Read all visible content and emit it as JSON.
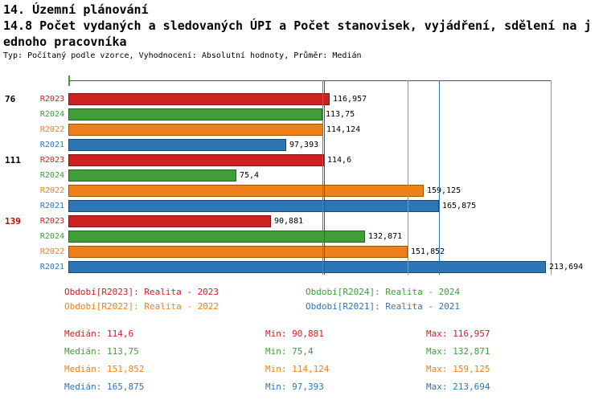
{
  "header": {
    "title": "14. Územní plánování",
    "subtitle_line1": "14.8 Počet vydaných a sledovaných ÚPI a Počet stanovisek, vyjádření, sdělení na j",
    "subtitle_line2": "ednoho pracovníka",
    "meta": "Typ: Počítaný podle vzorce, Vyhodnocení: Absolutní hodnoty, Průměr: Medián"
  },
  "chart_data": {
    "type": "bar",
    "orientation": "horizontal",
    "title": "14.8 Počet vydaných a sledovaných ÚPI a Počet stanovisek, vyjádření, sdělení na jednoho pracovníka",
    "xlim": [
      0,
      216
    ],
    "grid": false,
    "categories": [
      "76",
      "111",
      "139"
    ],
    "series": {
      "R2023": {
        "legend": "Období[R2023]: Realita - 2023",
        "color": "#cc2222",
        "border": "#7f1010",
        "median": 114.6,
        "min": 90.881,
        "max": 116.957
      },
      "R2024": {
        "legend": "Období[R2024]: Realita - 2024",
        "color": "#3f9e38",
        "border": "#1f681a",
        "median": 113.75,
        "min": 75.4,
        "max": 132.871
      },
      "R2022": {
        "legend": "Období[R2022]: Realita - 2022",
        "color": "#f08019",
        "border": "#9d5407",
        "median": 151.852,
        "min": 114.124,
        "max": 159.125
      },
      "R2021": {
        "legend": "Období[R2021]: Realita - 2021",
        "color": "#2e75b6",
        "border": "#17496f",
        "median": 165.875,
        "min": 97.393,
        "max": 213.694
      }
    },
    "groups": [
      {
        "id": "76",
        "id_color": "#000000",
        "bars": [
          {
            "series": "R2023",
            "value": 116.957,
            "label": "116,957"
          },
          {
            "series": "R2024",
            "value": 113.75,
            "label": "113,75"
          },
          {
            "series": "R2022",
            "value": 114.124,
            "label": "114,124"
          },
          {
            "series": "R2021",
            "value": 97.393,
            "label": "97,393"
          }
        ]
      },
      {
        "id": "111",
        "id_color": "#000000",
        "bars": [
          {
            "series": "R2023",
            "value": 114.6,
            "label": "114,6"
          },
          {
            "series": "R2024",
            "value": 75.4,
            "label": "75,4"
          },
          {
            "series": "R2022",
            "value": 159.125,
            "label": "159,125"
          },
          {
            "series": "R2021",
            "value": 165.875,
            "label": "165,875"
          }
        ]
      },
      {
        "id": "139",
        "id_color": "#cc0000",
        "bars": [
          {
            "series": "R2023",
            "value": 90.881,
            "label": "90,881"
          },
          {
            "series": "R2024",
            "value": 132.871,
            "label": "132,871"
          },
          {
            "series": "R2022",
            "value": 151.852,
            "label": "151,852"
          },
          {
            "series": "R2021",
            "value": 213.694,
            "label": "213,694"
          }
        ]
      }
    ],
    "median_lines": [
      "R2023",
      "R2024",
      "R2022",
      "R2021"
    ],
    "legend": [
      {
        "series": "R2023",
        "text": "Období[R2023]: Realita - 2023"
      },
      {
        "series": "R2024",
        "text": "Období[R2024]: Realita - 2024"
      },
      {
        "series": "R2022",
        "text": "Období[R2022]: Realita - 2022"
      },
      {
        "series": "R2021",
        "text": "Období[R2021]: Realita - 2021"
      }
    ],
    "stats": [
      {
        "series": "R2023",
        "median": "Medián: 114,6",
        "min": "Min: 90,881",
        "max": "Max: 116,957"
      },
      {
        "series": "R2024",
        "median": "Medián: 113,75",
        "min": "Min: 75,4",
        "max": "Max: 132,871"
      },
      {
        "series": "R2022",
        "median": "Medián: 151,852",
        "min": "Min: 114,124",
        "max": "Max: 159,125"
      },
      {
        "series": "R2021",
        "median": "Medián: 165,875",
        "min": "Min: 97,393",
        "max": "Max: 213,694"
      }
    ]
  }
}
